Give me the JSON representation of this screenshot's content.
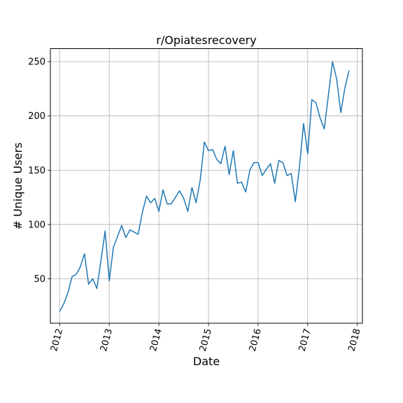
{
  "chart_data": {
    "type": "line",
    "title": "r/Opiatesrecovery",
    "xlabel": "Date",
    "ylabel": "# Unique Users",
    "xticks": [
      "2012",
      "2013",
      "2014",
      "2015",
      "2016",
      "2017",
      "2018"
    ],
    "yticks": [
      50,
      100,
      150,
      200,
      250
    ],
    "xlim": [
      "2011-10-24",
      "2018-02-08"
    ],
    "ylim": [
      9,
      262
    ],
    "grid": true,
    "line_color": "#1f77b4",
    "series": [
      {
        "x": [
          "2012-01",
          "2012-02",
          "2012-03",
          "2012-04",
          "2012-05",
          "2012-06",
          "2012-07",
          "2012-08",
          "2012-09",
          "2012-10",
          "2012-11",
          "2012-12",
          "2013-01",
          "2013-02",
          "2013-03",
          "2013-04",
          "2013-05",
          "2013-06",
          "2013-07",
          "2013-08",
          "2013-09",
          "2013-10",
          "2013-11",
          "2013-12",
          "2014-01",
          "2014-02",
          "2014-03",
          "2014-04",
          "2014-05",
          "2014-06",
          "2014-07",
          "2014-08",
          "2014-09",
          "2014-10",
          "2014-11",
          "2014-12",
          "2015-01",
          "2015-02",
          "2015-03",
          "2015-04",
          "2015-05",
          "2015-06",
          "2015-07",
          "2015-08",
          "2015-09",
          "2015-10",
          "2015-11",
          "2015-12",
          "2016-01",
          "2016-02",
          "2016-03",
          "2016-04",
          "2016-05",
          "2016-06",
          "2016-07",
          "2016-08",
          "2016-09",
          "2016-10",
          "2016-11",
          "2016-12",
          "2017-01",
          "2017-02",
          "2017-03",
          "2017-04",
          "2017-05",
          "2017-06",
          "2017-07",
          "2017-08",
          "2017-09",
          "2017-10",
          "2017-11"
        ],
        "values": [
          20,
          27,
          37,
          52,
          54,
          61,
          73,
          45,
          50,
          41,
          67,
          94,
          48,
          79,
          89,
          99,
          88,
          95,
          93,
          91,
          111,
          126,
          120,
          124,
          112,
          132,
          119,
          119,
          125,
          131,
          124,
          112,
          134,
          120,
          141,
          176,
          168,
          169,
          160,
          156,
          172,
          146,
          168,
          138,
          139,
          130,
          150,
          157,
          157,
          145,
          151,
          156,
          138,
          159,
          157,
          145,
          147,
          121,
          153,
          193,
          165,
          215,
          212,
          198,
          188,
          219,
          250,
          234,
          203,
          226,
          242
        ]
      }
    ]
  }
}
